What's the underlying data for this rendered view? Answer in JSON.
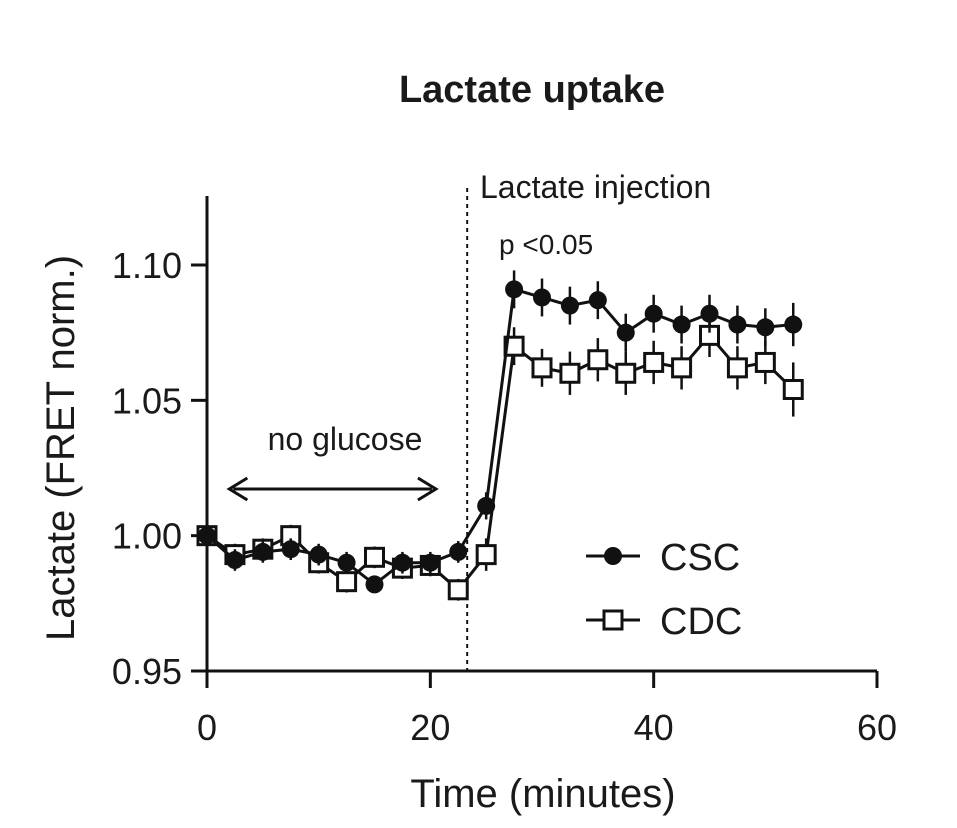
{
  "chart_data": {
    "type": "line",
    "title": "Lactate uptake",
    "xlabel": "Time (minutes)",
    "ylabel": "Lactate (FRET norm.)",
    "xlim": [
      0,
      60
    ],
    "ylim": [
      0.95,
      1.12
    ],
    "xticks": [
      "0",
      "20",
      "40",
      "60"
    ],
    "yticks": [
      "0.95",
      "1.00",
      "1.05",
      "1.10"
    ],
    "grid": false,
    "legend_position": "bottom-right",
    "annotations": {
      "injection_label": "Lactate injection",
      "injection_x": 23.3,
      "pvalue": "p <0.05",
      "range_label": "no glucose",
      "range_x": [
        2,
        20.5
      ]
    },
    "series": [
      {
        "name": "CSC",
        "marker": "filled-circle",
        "color": "#111111",
        "x": [
          0,
          2.5,
          5,
          7.5,
          10,
          12.5,
          15,
          17.5,
          20,
          22.5,
          25,
          27.5,
          30,
          32.5,
          35,
          37.5,
          40,
          42.5,
          45,
          47.5,
          50,
          52.5
        ],
        "y": [
          1.0,
          0.991,
          0.994,
          0.995,
          0.993,
          0.99,
          0.982,
          0.99,
          0.99,
          0.994,
          1.011,
          1.091,
          1.088,
          1.085,
          1.087,
          1.075,
          1.082,
          1.078,
          1.082,
          1.078,
          1.077,
          1.078
        ],
        "err": [
          0,
          0.004,
          0.004,
          0.004,
          0.004,
          0.004,
          0.003,
          0.004,
          0.004,
          0.004,
          0.005,
          0.007,
          0.007,
          0.007,
          0.007,
          0.007,
          0.007,
          0.007,
          0.007,
          0.007,
          0.007,
          0.008
        ]
      },
      {
        "name": "CDC",
        "marker": "open-square",
        "color": "#111111",
        "x": [
          0,
          2.5,
          5,
          7.5,
          10,
          12.5,
          15,
          17.5,
          20,
          22.5,
          25,
          27.5,
          30,
          32.5,
          35,
          37.5,
          40,
          42.5,
          45,
          47.5,
          50,
          52.5
        ],
        "y": [
          1.0,
          0.993,
          0.995,
          1.0,
          0.99,
          0.983,
          0.992,
          0.988,
          0.989,
          0.98,
          0.993,
          1.07,
          1.062,
          1.06,
          1.065,
          1.06,
          1.064,
          1.062,
          1.074,
          1.062,
          1.064,
          1.054
        ],
        "err": [
          0,
          0.004,
          0.004,
          0.004,
          0.004,
          0.004,
          0.004,
          0.004,
          0.004,
          0.004,
          0.006,
          0.007,
          0.007,
          0.008,
          0.008,
          0.008,
          0.008,
          0.008,
          0.008,
          0.008,
          0.008,
          0.01
        ]
      }
    ]
  }
}
